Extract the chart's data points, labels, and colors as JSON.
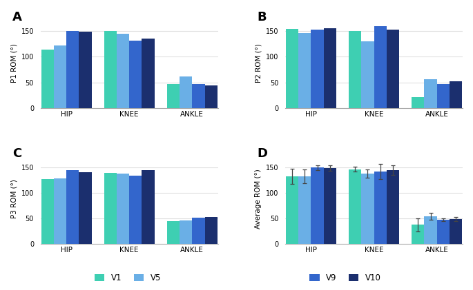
{
  "colors": {
    "V1": "#3ECFB2",
    "V5": "#6AAFE6",
    "V9": "#3366CC",
    "V10": "#1B2F6E"
  },
  "A": {
    "title": "A",
    "ylabel": "P1 ROM (°)",
    "HIP": [
      114,
      122,
      151,
      149
    ],
    "KNEE": [
      150,
      145,
      131,
      136
    ],
    "ANKLE": [
      47,
      61,
      46,
      44
    ]
  },
  "B": {
    "title": "B",
    "ylabel": "P2 ROM (°)",
    "HIP": [
      154,
      147,
      153,
      156
    ],
    "KNEE": [
      150,
      130,
      160,
      153
    ],
    "ANKLE": [
      21,
      56,
      46,
      52
    ]
  },
  "C": {
    "title": "C",
    "ylabel": "P3 ROM (°)",
    "HIP": [
      127,
      128,
      144,
      140
    ],
    "KNEE": [
      139,
      138,
      133,
      144
    ],
    "ANKLE": [
      45,
      46,
      51,
      52
    ]
  },
  "D": {
    "title": "D",
    "ylabel": "Average ROM (°)",
    "HIP": [
      132,
      132,
      149,
      148
    ],
    "KNEE": [
      146,
      138,
      141,
      144
    ],
    "ANKLE": [
      37,
      54,
      47,
      49
    ],
    "HIP_err": [
      15,
      13,
      5,
      5
    ],
    "KNEE_err": [
      5,
      8,
      15,
      9
    ],
    "ANKLE_err": [
      13,
      7,
      3,
      4
    ]
  },
  "legend_labels": [
    "V1",
    "V5",
    "V9",
    "V10"
  ],
  "categories": [
    "HIP",
    "KNEE",
    "ANKLE"
  ],
  "ylim": [
    0,
    175
  ],
  "yticks": [
    0,
    50,
    100,
    150
  ],
  "bg_color": "#FFFFFF",
  "grid_color": "#E0E0E0",
  "bar_width": 0.22,
  "group_positions": [
    0.0,
    1.1,
    2.2
  ]
}
